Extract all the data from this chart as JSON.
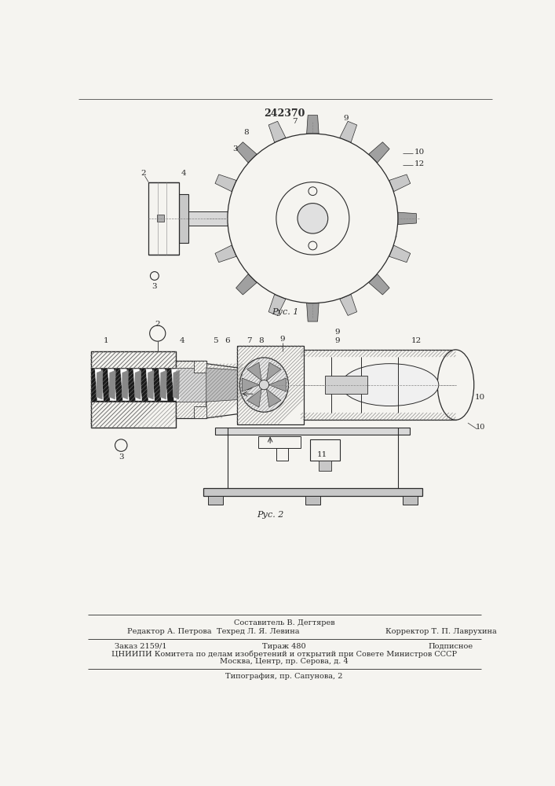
{
  "patent_number": "242370",
  "fig1_caption": "Рус. 1",
  "fig2_caption": "Рус. 2",
  "sestavitel": "Составитель В. Дегтярев",
  "redaktor": "Редактор А. Петрова",
  "tekhred": "Техред Л. Я. Левина",
  "korrektor": "Корректор Т. П. Лаврухина",
  "zakaz": "Заказ 2159/1",
  "tirazh": "Тираж 480",
  "podpisnoe": "Подписное",
  "tsniipi": "ЦНИИПИ Комитета по делам изобретений и открытий при Совете Министров СССР",
  "moskva": "Москва, Центр, пр. Серова, д. 4",
  "tipografiya": "Типография, пр. Сапунова, 2",
  "bg_color": "#f5f4f0",
  "line_color": "#2a2a2a",
  "hatch_color": "#555555"
}
